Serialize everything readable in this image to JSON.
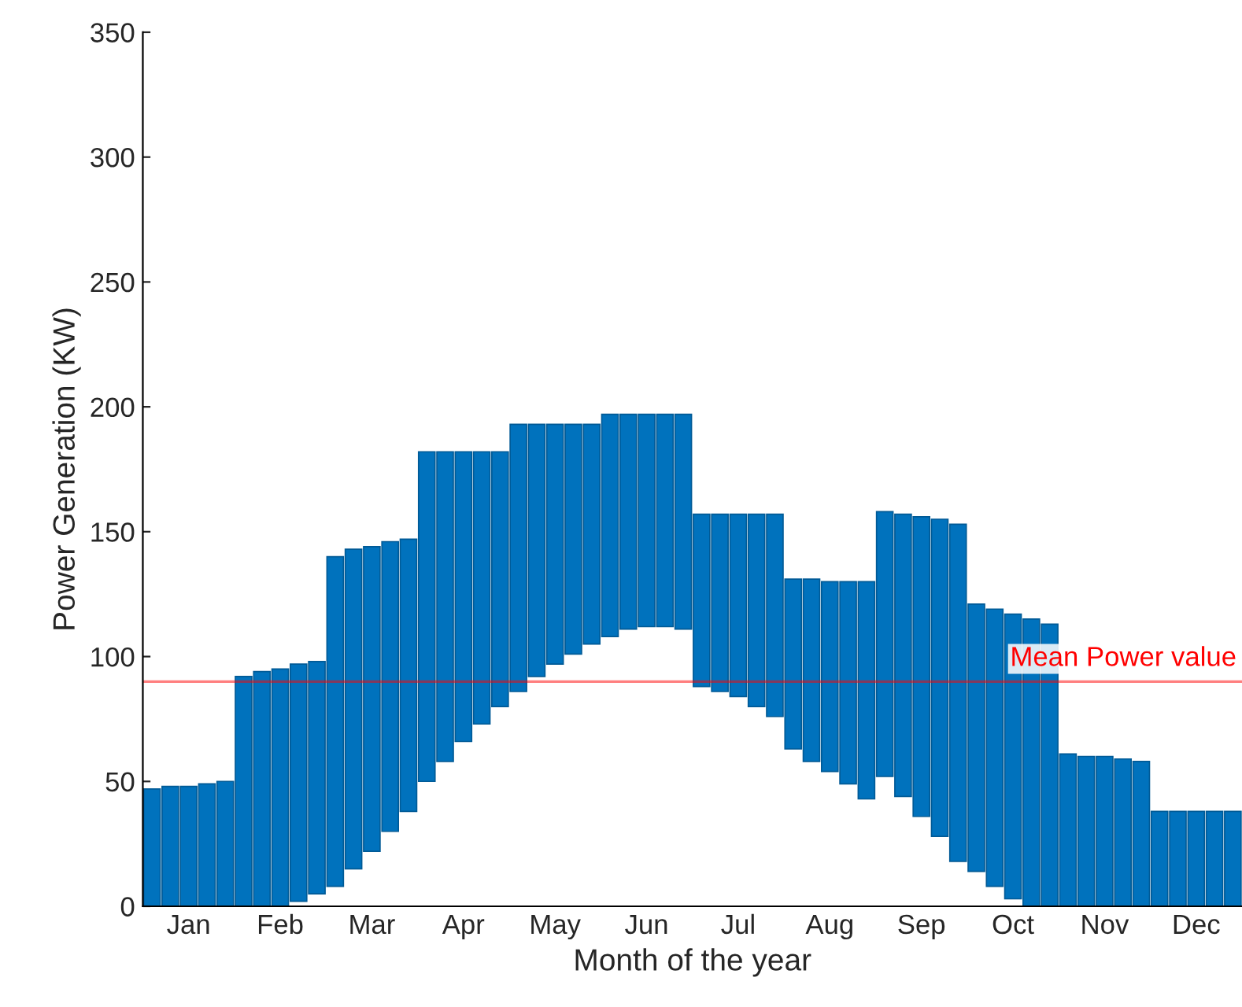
{
  "chart_data": {
    "type": "bar",
    "xlabel": "Month of the year",
    "ylabel": "Power Generation (KW)",
    "categories": [
      null,
      null,
      "Jan",
      null,
      null,
      null,
      null,
      "Feb",
      null,
      null,
      null,
      null,
      "Mar",
      null,
      null,
      null,
      null,
      "Apr",
      null,
      null,
      null,
      null,
      "May",
      null,
      null,
      null,
      null,
      "Jun",
      null,
      null,
      null,
      null,
      "Jul",
      null,
      null,
      null,
      null,
      "Aug",
      null,
      null,
      null,
      null,
      "Sep",
      null,
      null,
      null,
      null,
      "Oct",
      null,
      null,
      null,
      null,
      "Nov",
      null,
      null,
      null,
      null,
      "Dec",
      null,
      null
    ],
    "series": [
      {
        "color": "#0072bd",
        "base": [
          0,
          0,
          0,
          0,
          0,
          0,
          0,
          0,
          2,
          5,
          8,
          15,
          22,
          30,
          38,
          50,
          58,
          66,
          73,
          80,
          86,
          92,
          97,
          101,
          105,
          108,
          111,
          112,
          112,
          111,
          88,
          86,
          84,
          80,
          76,
          63,
          58,
          54,
          49,
          43,
          52,
          44,
          36,
          28,
          18,
          14,
          8,
          3,
          0,
          0,
          0,
          0,
          0,
          0,
          0,
          0,
          0,
          0,
          0,
          0
        ],
        "values": [
          47,
          48,
          48,
          49,
          50,
          92,
          94,
          95,
          95,
          93,
          132,
          128,
          122,
          116,
          109,
          132,
          124,
          116,
          109,
          102,
          107,
          101,
          96,
          92,
          88,
          89,
          86,
          85,
          85,
          86,
          69,
          71,
          73,
          77,
          81,
          68,
          73,
          76,
          81,
          87,
          106,
          113,
          120,
          127,
          135,
          107,
          111,
          114,
          115,
          113,
          61,
          60,
          60,
          59,
          58,
          38,
          38,
          38,
          38,
          38
        ]
      }
    ],
    "ylim": [
      0,
      350
    ],
    "yticks": [
      0,
      50,
      100,
      150,
      200,
      250,
      300,
      350
    ],
    "ref_lines": [
      {
        "axis": "y",
        "value": 90,
        "label": "Mean Power value",
        "color": "#ff0000"
      }
    ],
    "grid": false,
    "legend": false
  }
}
